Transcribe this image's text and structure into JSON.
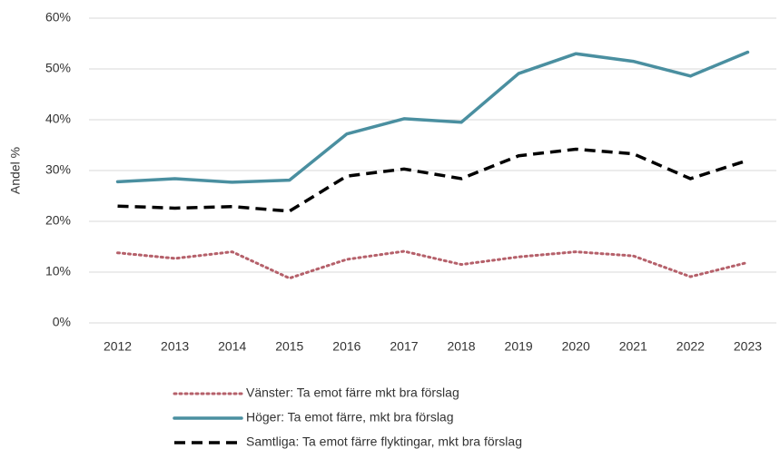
{
  "chart_data": {
    "type": "line",
    "y_label": "Andel %",
    "categories": [
      "2012",
      "2013",
      "2014",
      "2015",
      "2016",
      "2017",
      "2018",
      "2019",
      "2020",
      "2021",
      "2022",
      "2023"
    ],
    "series": [
      {
        "name": "Vänster: Ta emot färre mkt bra förslag",
        "color": "#b5606a",
        "style": "dotted",
        "values": [
          13.8,
          12.7,
          14.0,
          8.8,
          12.5,
          14.1,
          11.5,
          13.0,
          14.0,
          13.2,
          9.1,
          11.9
        ]
      },
      {
        "name": "Höger: Ta emot färre, mkt bra förslag",
        "color": "#4a8fa0",
        "style": "solid",
        "values": [
          27.8,
          28.4,
          27.7,
          28.1,
          37.2,
          40.2,
          39.5,
          49.1,
          53.0,
          51.5,
          48.6,
          53.3
        ]
      },
      {
        "name": "Samtliga: Ta emot färre flyktingar, mkt bra förslag",
        "color": "#000000",
        "style": "dashed",
        "values": [
          23.0,
          22.6,
          22.9,
          22.0,
          28.9,
          30.3,
          28.4,
          32.9,
          34.2,
          33.3,
          28.4,
          32.0
        ]
      }
    ],
    "ylim": [
      0,
      60
    ],
    "yticks": [
      {
        "value": 0,
        "label": "0%"
      },
      {
        "value": 10,
        "label": "10%"
      },
      {
        "value": 20,
        "label": "20%"
      },
      {
        "value": 30,
        "label": "30%"
      },
      {
        "value": 40,
        "label": "40%"
      },
      {
        "value": 50,
        "label": "50%"
      },
      {
        "value": 60,
        "label": "60%"
      }
    ],
    "grid": true,
    "legend": "bottom"
  }
}
